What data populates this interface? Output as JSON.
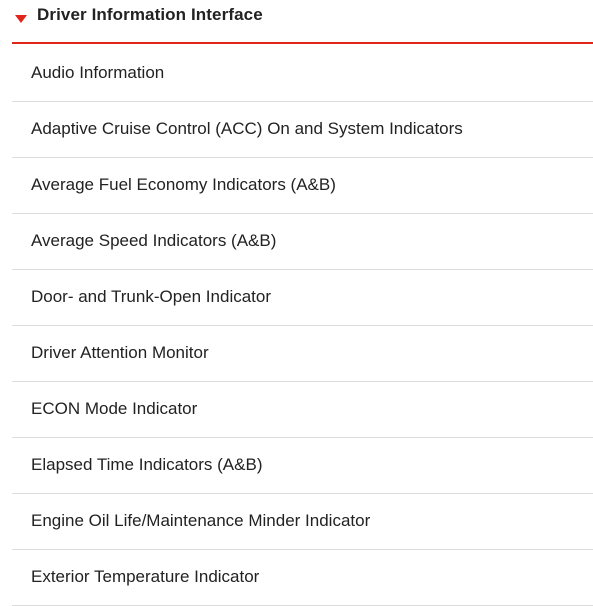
{
  "section": {
    "title": "Driver Information Interface",
    "expanded_icon": "caret-down-icon",
    "accent_color": "#e1251b",
    "items": [
      {
        "label": "Audio Information"
      },
      {
        "label": "Adaptive Cruise Control (ACC) On and System Indicators"
      },
      {
        "label": "Average Fuel Economy Indicators (A&B)"
      },
      {
        "label": "Average Speed Indicators (A&B)"
      },
      {
        "label": "Door- and Trunk-Open Indicator"
      },
      {
        "label": "Driver Attention Monitor"
      },
      {
        "label": "ECON Mode Indicator"
      },
      {
        "label": "Elapsed Time Indicators (A&B)"
      },
      {
        "label": "Engine Oil Life/Maintenance Minder Indicator"
      },
      {
        "label": "Exterior Temperature Indicator"
      }
    ]
  }
}
